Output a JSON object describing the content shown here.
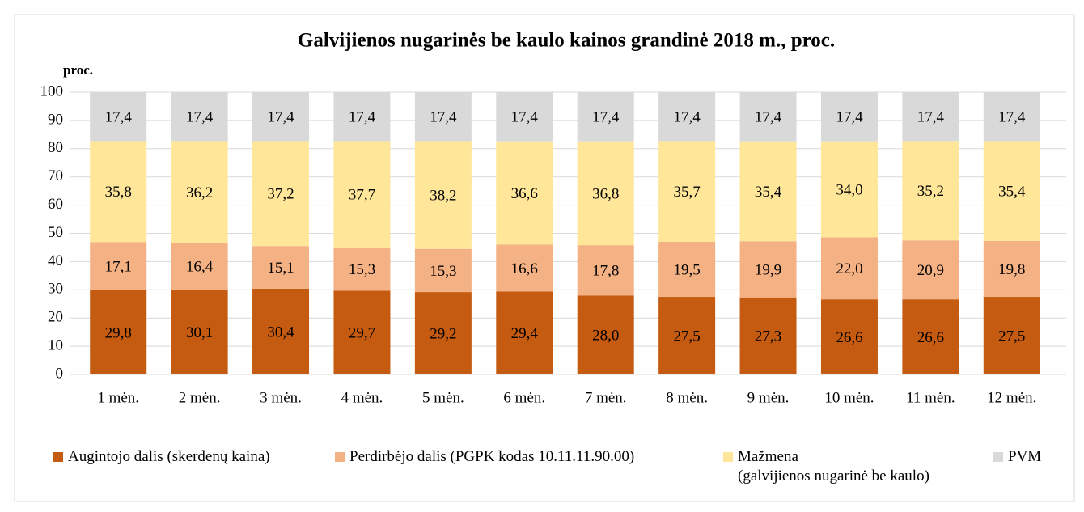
{
  "chart_data": {
    "type": "stacked_bar",
    "title": "Galvijienos nugarinės be kaulo kainos grandinė 2018 m., proc.",
    "y_label": "proc.",
    "categories": [
      "1 mėn.",
      "2 mėn.",
      "3 mėn.",
      "4 mėn.",
      "5 mėn.",
      "6 mėn.",
      "7 mėn.",
      "8 mėn.",
      "9 mėn.",
      "10 mėn.",
      "11 mėn.",
      "12 mėn."
    ],
    "series": [
      {
        "name": "Augintojo dalis (skerdenų kaina)",
        "color": "#c55a11",
        "values": [
          29.8,
          30.1,
          30.4,
          29.7,
          29.2,
          29.4,
          28.0,
          27.5,
          27.3,
          26.6,
          26.6,
          27.5
        ],
        "value_labels": [
          "29,8",
          "30,1",
          "30,4",
          "29,7",
          "29,2",
          "29,4",
          "28,0",
          "27,5",
          "27,3",
          "26,6",
          "26,6",
          "27,5"
        ]
      },
      {
        "name": "Perdirbėjo dalis (PGPK kodas 10.11.11.90.00)",
        "color": "#f4b183",
        "values": [
          17.1,
          16.4,
          15.1,
          15.3,
          15.3,
          16.6,
          17.8,
          19.5,
          19.9,
          22.0,
          20.9,
          19.8
        ],
        "value_labels": [
          "17,1",
          "16,4",
          "15,1",
          "15,3",
          "15,3",
          "16,6",
          "17,8",
          "19,5",
          "19,9",
          "22,0",
          "20,9",
          "19,8"
        ]
      },
      {
        "name": "Mažmena\n(galvijienos nugarinė be kaulo)",
        "color": "#ffe699",
        "values": [
          35.8,
          36.2,
          37.2,
          37.7,
          38.2,
          36.6,
          36.8,
          35.7,
          35.4,
          34.0,
          35.2,
          35.4
        ],
        "value_labels": [
          "35,8",
          "36,2",
          "37,2",
          "37,7",
          "38,2",
          "36,6",
          "36,8",
          "35,7",
          "35,4",
          "34,0",
          "35,2",
          "35,4"
        ]
      },
      {
        "name": "PVM",
        "color": "#d9d9d9",
        "values": [
          17.4,
          17.4,
          17.4,
          17.4,
          17.4,
          17.4,
          17.4,
          17.4,
          17.4,
          17.4,
          17.4,
          17.4
        ],
        "value_labels": [
          "17,4",
          "17,4",
          "17,4",
          "17,4",
          "17,4",
          "17,4",
          "17,4",
          "17,4",
          "17,4",
          "17,4",
          "17,4",
          "17,4"
        ]
      }
    ],
    "ylim": [
      0,
      100
    ],
    "yticks": [
      0,
      10,
      20,
      30,
      40,
      50,
      60,
      70,
      80,
      90,
      100
    ],
    "grid": true,
    "legend": "bottom"
  }
}
